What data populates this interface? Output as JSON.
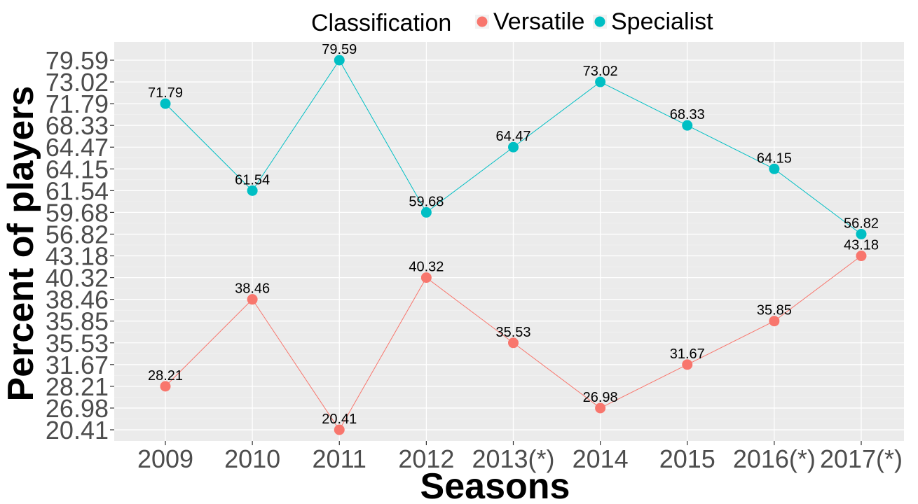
{
  "chart_data": {
    "type": "line",
    "categories": [
      "2009",
      "2010",
      "2011",
      "2012",
      "2013(*)",
      "2014",
      "2015",
      "2016(*)",
      "2017(*)"
    ],
    "series": [
      {
        "name": "Specialist",
        "color": "#00BFC4",
        "values": [
          71.79,
          61.54,
          79.59,
          59.68,
          64.47,
          73.02,
          68.33,
          64.15,
          56.82
        ],
        "labels": [
          "71.79",
          "61.54",
          "79.59",
          "59.68",
          "64.47",
          "73.02",
          "68.33",
          "64.15",
          "56.82"
        ]
      },
      {
        "name": "Versatile",
        "color": "#F8766D",
        "values": [
          28.21,
          38.46,
          20.41,
          40.32,
          35.53,
          26.98,
          31.67,
          35.85,
          43.18
        ],
        "labels": [
          "28.21",
          "38.46",
          "20.41",
          "40.32",
          "35.53",
          "26.98",
          "31.67",
          "35.85",
          "43.18"
        ]
      }
    ],
    "y_ticks": [
      "20.41",
      "26.98",
      "28.21",
      "31.67",
      "35.53",
      "35.85",
      "38.46",
      "40.32",
      "43.18",
      "56.82",
      "59.68",
      "61.54",
      "64.15",
      "64.47",
      "68.33",
      "71.79",
      "73.02",
      "79.59"
    ],
    "xlabel": "Seasons",
    "ylabel": "Percent of players",
    "legend": {
      "title": "Classification",
      "position": "top",
      "entries": [
        "Versatile",
        "Specialist"
      ]
    },
    "grid": true,
    "panel_background": "#EBEBEB"
  }
}
